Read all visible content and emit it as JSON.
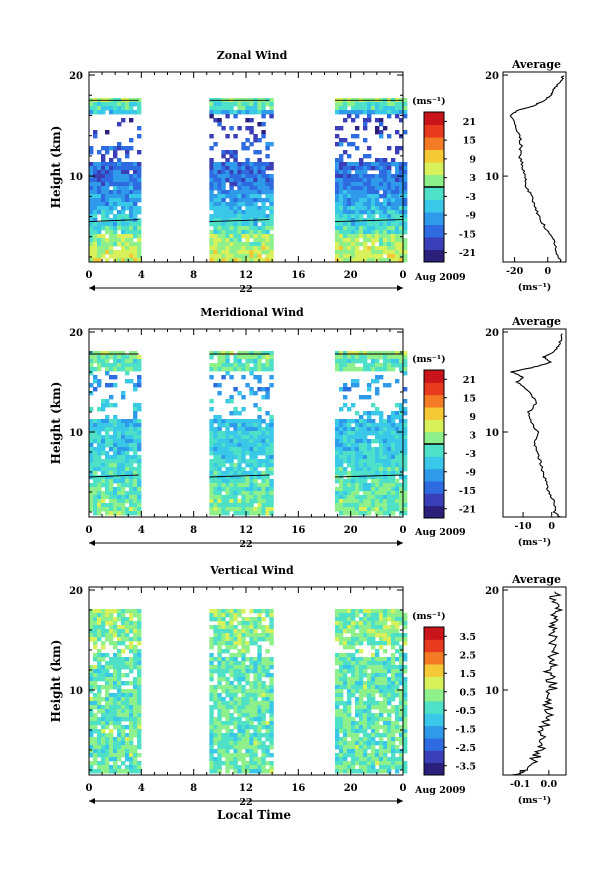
{
  "panels": [
    {
      "title": "Zonal Wind",
      "ylabel": "Height (km)",
      "colorbar_unit": "(ms⁻¹)",
      "colorbar_ticks": [
        "21",
        "15",
        "9",
        "3",
        "-3",
        "-9",
        "-15",
        "-21"
      ],
      "colorbar_range": [
        -24,
        24
      ],
      "contour_level": 0,
      "avg_title": "Average",
      "avg_xlabel": "(ms⁻¹)",
      "avg_xticks": [
        "-20",
        "0"
      ],
      "avg_xlim": [
        -27,
        11
      ],
      "avg_profile": [
        [
          1.5,
          8
        ],
        [
          2,
          6
        ],
        [
          3,
          5
        ],
        [
          4,
          3
        ],
        [
          5,
          -2
        ],
        [
          6,
          -5
        ],
        [
          7,
          -8
        ],
        [
          8,
          -10
        ],
        [
          9,
          -13
        ],
        [
          10,
          -14
        ],
        [
          11,
          -15
        ],
        [
          12,
          -17
        ],
        [
          13,
          -16
        ],
        [
          14,
          -17
        ],
        [
          15,
          -20
        ],
        [
          16,
          -22
        ],
        [
          16.5,
          -18
        ],
        [
          17,
          -8
        ],
        [
          17.5,
          -2
        ],
        [
          18,
          2
        ],
        [
          18.5,
          3
        ],
        [
          19,
          6
        ],
        [
          19.5,
          8
        ],
        [
          20,
          10
        ]
      ],
      "base": -2,
      "data_top": 17.5
    },
    {
      "title": "Meridional Wind",
      "ylabel": "Height (km)",
      "colorbar_unit": "(ms⁻¹)",
      "colorbar_ticks": [
        "21",
        "15",
        "9",
        "3",
        "-3",
        "-9",
        "-15",
        "-21"
      ],
      "colorbar_range": [
        -24,
        24
      ],
      "contour_level": 0,
      "avg_title": "Average",
      "avg_xlabel": "(ms⁻¹)",
      "avg_xticks": [
        "-10",
        "0"
      ],
      "avg_xlim": [
        -17,
        5
      ],
      "avg_profile": [
        [
          1.5,
          3
        ],
        [
          2,
          1
        ],
        [
          3,
          1
        ],
        [
          4,
          -1
        ],
        [
          5,
          -2
        ],
        [
          6,
          -3
        ],
        [
          7,
          -4
        ],
        [
          8,
          -5
        ],
        [
          9,
          -6
        ],
        [
          10,
          -5
        ],
        [
          11,
          -7
        ],
        [
          12,
          -8
        ],
        [
          13,
          -5
        ],
        [
          14,
          -8
        ],
        [
          15,
          -12
        ],
        [
          15.5,
          -10
        ],
        [
          16,
          -14
        ],
        [
          16.5,
          -6
        ],
        [
          17,
          0
        ],
        [
          17.5,
          -3
        ],
        [
          18,
          1
        ],
        [
          18.5,
          2
        ],
        [
          19,
          3
        ],
        [
          20,
          4
        ]
      ],
      "base": -3,
      "data_top": 17.8
    },
    {
      "title": "Vertical Wind",
      "ylabel": "Height (km)",
      "colorbar_unit": "(ms⁻¹)",
      "colorbar_ticks": [
        "3.5",
        "2.5",
        "1.5",
        "0.5",
        "-0.5",
        "-1.5",
        "-2.5",
        "-3.5"
      ],
      "colorbar_range": [
        -4,
        4
      ],
      "contour_level": null,
      "avg_title": "Average",
      "avg_xlabel": "(ms⁻¹)",
      "avg_xticks": [
        "-0.1",
        "0.0"
      ],
      "avg_xlim": [
        -0.16,
        0.06
      ],
      "avg_profile": [
        [
          1.5,
          -0.13
        ],
        [
          2,
          -0.08
        ],
        [
          3,
          -0.05
        ],
        [
          4,
          -0.03
        ],
        [
          5,
          -0.02
        ],
        [
          6,
          -0.02
        ],
        [
          7,
          -0.01
        ],
        [
          8,
          0.0
        ],
        [
          9,
          0.0
        ],
        [
          10,
          0.01
        ],
        [
          11,
          0.01
        ],
        [
          12,
          0.0
        ],
        [
          13,
          0.02
        ],
        [
          14,
          0.01
        ],
        [
          15,
          0.02
        ],
        [
          16,
          0.01
        ],
        [
          17,
          0.02
        ],
        [
          18,
          0.03
        ],
        [
          19,
          0.02
        ],
        [
          20,
          0.03
        ]
      ],
      "base": 0,
      "data_top": 20
    }
  ],
  "axes": {
    "yticks": [
      "20",
      "10"
    ],
    "ylim": [
      1.5,
      20.3
    ],
    "xticks": [
      "0",
      "4",
      "8",
      "12",
      "16",
      "20",
      "0"
    ],
    "xlim": [
      0,
      24
    ],
    "date_center": "22",
    "date_right": "Aug 2009",
    "xlabel": "Local Time",
    "data_segments": [
      [
        0,
        3.8
      ],
      [
        9.2,
        13.8
      ],
      [
        18.8,
        24
      ]
    ]
  },
  "colors": {
    "colorbar": [
      "#2a1f7a",
      "#3a3fb8",
      "#2e6be0",
      "#2f9aea",
      "#3ac8e8",
      "#4fe0c8",
      "#8ef08a",
      "#d8f05a",
      "#f5c836",
      "#f47b25",
      "#e83a1e",
      "#c8141a"
    ],
    "contour": "#000000",
    "background": "#ffffff"
  }
}
